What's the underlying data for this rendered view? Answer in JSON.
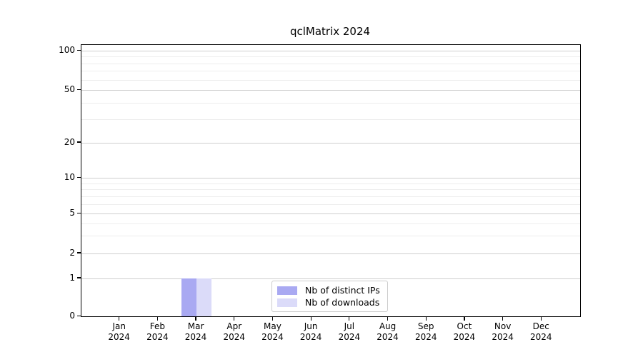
{
  "chart_data": {
    "type": "bar",
    "title": "qclMatrix 2024",
    "categories": [
      {
        "month": "Jan",
        "year": "2024"
      },
      {
        "month": "Feb",
        "year": "2024"
      },
      {
        "month": "Mar",
        "year": "2024"
      },
      {
        "month": "Apr",
        "year": "2024"
      },
      {
        "month": "May",
        "year": "2024"
      },
      {
        "month": "Jun",
        "year": "2024"
      },
      {
        "month": "Jul",
        "year": "2024"
      },
      {
        "month": "Aug",
        "year": "2024"
      },
      {
        "month": "Sep",
        "year": "2024"
      },
      {
        "month": "Oct",
        "year": "2024"
      },
      {
        "month": "Nov",
        "year": "2024"
      },
      {
        "month": "Dec",
        "year": "2024"
      }
    ],
    "series": [
      {
        "name": "Nb of distinct IPs",
        "color": "#a9a9f2",
        "values": [
          0,
          0,
          1,
          0,
          0,
          0,
          0,
          0,
          0,
          0,
          0,
          0
        ]
      },
      {
        "name": "Nb of downloads",
        "color": "#dbdbf9",
        "values": [
          0,
          0,
          1,
          0,
          0,
          0,
          0,
          0,
          0,
          0,
          0,
          0
        ]
      }
    ],
    "y_axis": {
      "scale": "log-with-zero",
      "major_ticks": [
        0,
        1,
        2,
        5,
        10,
        20,
        50,
        100
      ],
      "tick_labels": [
        "0",
        "1",
        "2",
        "5",
        "10",
        "20",
        "50",
        "100"
      ],
      "minor_gridlines": [
        3,
        4,
        6,
        7,
        8,
        9,
        30,
        40,
        60,
        70,
        80,
        90
      ]
    },
    "legend_position": "inside-bottom-center",
    "grid": {
      "horizontal_major": true,
      "horizontal_minor": true,
      "vertical": false
    },
    "colors": {
      "major_grid": "#cfcfcf",
      "minor_grid": "#ededed",
      "axis": "#000000",
      "background": "#ffffff"
    }
  }
}
